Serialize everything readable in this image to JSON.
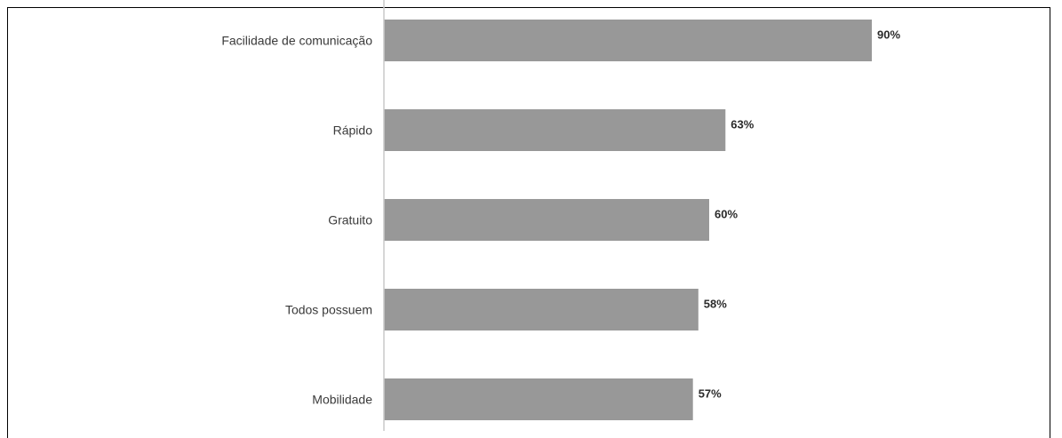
{
  "chart_data": {
    "type": "bar",
    "orientation": "horizontal",
    "categories": [
      "Facilidade de comunicação",
      "Rápido",
      "Gratuito",
      "Todos possuem",
      "Mobilidade"
    ],
    "values": [
      90,
      63,
      60,
      58,
      57
    ],
    "value_labels": [
      "90%",
      "63%",
      "60%",
      "58%",
      "57%"
    ],
    "xlim": [
      0,
      100
    ],
    "grid": false,
    "legend": "none",
    "bar_color": "#989898",
    "axis_color": "#c8c8c8"
  }
}
